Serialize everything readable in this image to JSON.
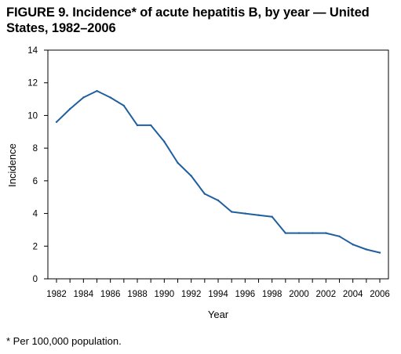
{
  "figure": {
    "title": "FIGURE 9. Incidence* of acute hepatitis B, by year — United States,  1982–2006",
    "footnote": "* Per 100,000 population."
  },
  "chart_data": {
    "type": "line",
    "xlabel": "Year",
    "ylabel": "Incidence",
    "xlim": [
      1982,
      2006
    ],
    "ylim": [
      0,
      14
    ],
    "grid": false,
    "x_ticks": [
      "1982",
      "1984",
      "1986",
      "1988",
      "1990",
      "1992",
      "1994",
      "1996",
      "1998",
      "2000",
      "2002",
      "2004",
      "2006"
    ],
    "y_ticks": [
      "0",
      "2",
      "4",
      "6",
      "8",
      "10",
      "12",
      "14"
    ],
    "line_color": "#1f5fa0",
    "series": [
      {
        "x": [
          1982,
          1983,
          1984,
          1985,
          1986,
          1987,
          1988,
          1989,
          1990,
          1991,
          1992,
          1993,
          1994,
          1995,
          1996,
          1997,
          1998,
          1999,
          2000,
          2001,
          2002,
          2003,
          2004,
          2005,
          2006
        ],
        "values": [
          9.6,
          10.4,
          11.1,
          11.5,
          11.1,
          10.6,
          9.4,
          9.4,
          8.4,
          7.1,
          6.3,
          5.2,
          4.8,
          4.1,
          4.0,
          3.9,
          3.8,
          2.8,
          2.8,
          2.8,
          2.8,
          2.6,
          2.1,
          1.8,
          1.6
        ]
      }
    ]
  }
}
